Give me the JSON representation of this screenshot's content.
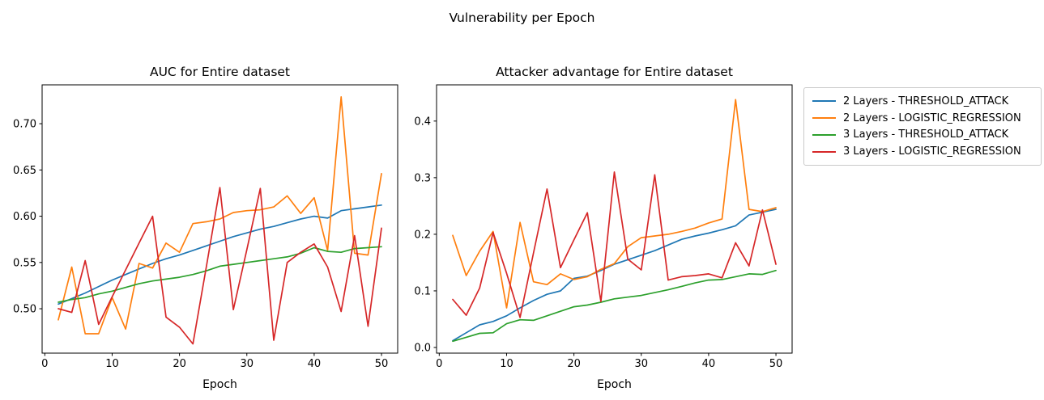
{
  "figure": {
    "suptitle": "Vulnerability per Epoch",
    "background": "#ffffff"
  },
  "colors": {
    "blue": "#1f77b4",
    "orange": "#ff7f0e",
    "green": "#2ca02c",
    "red": "#d62728",
    "axis": "#000000",
    "legend_border": "#c9c9c9"
  },
  "legend": {
    "items": [
      {
        "label": "2 Layers - THRESHOLD_ATTACK",
        "color": "#1f77b4"
      },
      {
        "label": "2 Layers - LOGISTIC_REGRESSION",
        "color": "#ff7f0e"
      },
      {
        "label": "3 Layers - THRESHOLD_ATTACK",
        "color": "#2ca02c"
      },
      {
        "label": "3 Layers - LOGISTIC_REGRESSION",
        "color": "#d62728"
      }
    ]
  },
  "chart_data": [
    {
      "type": "line",
      "title": "AUC for Entire dataset",
      "xlabel": "Epoch",
      "ylabel": "",
      "grid": false,
      "x": [
        2,
        4,
        6,
        8,
        10,
        12,
        14,
        16,
        18,
        20,
        22,
        24,
        26,
        28,
        30,
        32,
        34,
        36,
        38,
        40,
        42,
        44,
        46,
        48,
        50
      ],
      "xlim": [
        -0.4,
        52.4
      ],
      "ylim": [
        0.452,
        0.742
      ],
      "xticks": [
        0,
        10,
        20,
        30,
        40,
        50
      ],
      "xtick_labels": [
        "0",
        "10",
        "20",
        "30",
        "40",
        "50"
      ],
      "yticks": [
        0.5,
        0.55,
        0.6,
        0.65,
        0.7
      ],
      "ytick_labels": [
        "0.50",
        "0.55",
        "0.60",
        "0.65",
        "0.70"
      ],
      "series": [
        {
          "name": "2 Layers - THRESHOLD_ATTACK",
          "color": "#1f77b4",
          "values": [
            0.505,
            0.511,
            0.517,
            0.524,
            0.531,
            0.537,
            0.543,
            0.549,
            0.554,
            0.558,
            0.563,
            0.568,
            0.573,
            0.578,
            0.582,
            0.586,
            0.589,
            0.593,
            0.597,
            0.6,
            0.598,
            0.606,
            0.608,
            0.61,
            0.612
          ]
        },
        {
          "name": "2 Layers - LOGISTIC_REGRESSION",
          "color": "#ff7f0e",
          "values": [
            0.488,
            0.545,
            0.473,
            0.473,
            0.512,
            0.478,
            0.549,
            0.544,
            0.571,
            0.561,
            0.592,
            0.594,
            0.597,
            0.604,
            0.606,
            0.607,
            0.61,
            0.622,
            0.603,
            0.62,
            0.563,
            0.729,
            0.56,
            0.558,
            0.646
          ]
        },
        {
          "name": "3 Layers - THRESHOLD_ATTACK",
          "color": "#2ca02c",
          "values": [
            0.507,
            0.51,
            0.512,
            0.516,
            0.519,
            0.523,
            0.527,
            0.53,
            0.532,
            0.534,
            0.537,
            0.541,
            0.546,
            0.548,
            0.55,
            0.552,
            0.554,
            0.556,
            0.56,
            0.566,
            0.562,
            0.561,
            0.565,
            0.566,
            0.567
          ]
        },
        {
          "name": "3 Layers - LOGISTIC_REGRESSION",
          "color": "#d62728",
          "values": [
            0.5,
            0.496,
            0.552,
            0.483,
            0.513,
            0.542,
            0.571,
            0.6,
            0.491,
            0.48,
            0.462,
            0.546,
            0.631,
            0.499,
            0.564,
            0.63,
            0.466,
            0.55,
            0.561,
            0.57,
            0.545,
            0.497,
            0.579,
            0.481,
            0.587
          ]
        }
      ]
    },
    {
      "type": "line",
      "title": "Attacker advantage for Entire dataset",
      "xlabel": "Epoch",
      "ylabel": "",
      "grid": false,
      "legend_position": "outside upper right",
      "x": [
        2,
        4,
        6,
        8,
        10,
        12,
        14,
        16,
        18,
        20,
        22,
        24,
        26,
        28,
        30,
        32,
        34,
        36,
        38,
        40,
        42,
        44,
        46,
        48,
        50
      ],
      "xlim": [
        -0.4,
        52.4
      ],
      "ylim": [
        -0.01,
        0.464
      ],
      "xticks": [
        0,
        10,
        20,
        30,
        40,
        50
      ],
      "xtick_labels": [
        "0",
        "10",
        "20",
        "30",
        "40",
        "50"
      ],
      "yticks": [
        0.0,
        0.1,
        0.2,
        0.3,
        0.4
      ],
      "ytick_labels": [
        "0.0",
        "0.1",
        "0.2",
        "0.3",
        "0.4"
      ],
      "series": [
        {
          "name": "2 Layers - THRESHOLD_ATTACK",
          "color": "#1f77b4",
          "values": [
            0.012,
            0.026,
            0.04,
            0.046,
            0.056,
            0.07,
            0.083,
            0.094,
            0.1,
            0.122,
            0.126,
            0.136,
            0.147,
            0.155,
            0.163,
            0.171,
            0.181,
            0.191,
            0.197,
            0.202,
            0.208,
            0.215,
            0.234,
            0.239,
            0.244
          ]
        },
        {
          "name": "2 Layers - LOGISTIC_REGRESSION",
          "color": "#ff7f0e",
          "values": [
            0.198,
            0.127,
            0.17,
            0.205,
            0.07,
            0.221,
            0.116,
            0.111,
            0.13,
            0.12,
            0.125,
            0.138,
            0.148,
            0.178,
            0.194,
            0.197,
            0.2,
            0.205,
            0.211,
            0.22,
            0.227,
            0.438,
            0.244,
            0.24,
            0.247
          ]
        },
        {
          "name": "3 Layers - THRESHOLD_ATTACK",
          "color": "#2ca02c",
          "values": [
            0.011,
            0.018,
            0.025,
            0.026,
            0.042,
            0.049,
            0.048,
            0.056,
            0.064,
            0.072,
            0.075,
            0.08,
            0.086,
            0.089,
            0.092,
            0.097,
            0.102,
            0.108,
            0.114,
            0.119,
            0.12,
            0.125,
            0.13,
            0.129,
            0.136
          ]
        },
        {
          "name": "3 Layers - LOGISTIC_REGRESSION",
          "color": "#d62728",
          "values": [
            0.085,
            0.057,
            0.105,
            0.203,
            0.131,
            0.053,
            0.167,
            0.28,
            0.141,
            0.19,
            0.238,
            0.081,
            0.31,
            0.156,
            0.137,
            0.305,
            0.119,
            0.125,
            0.127,
            0.13,
            0.123,
            0.185,
            0.144,
            0.243,
            0.147
          ]
        }
      ]
    }
  ]
}
